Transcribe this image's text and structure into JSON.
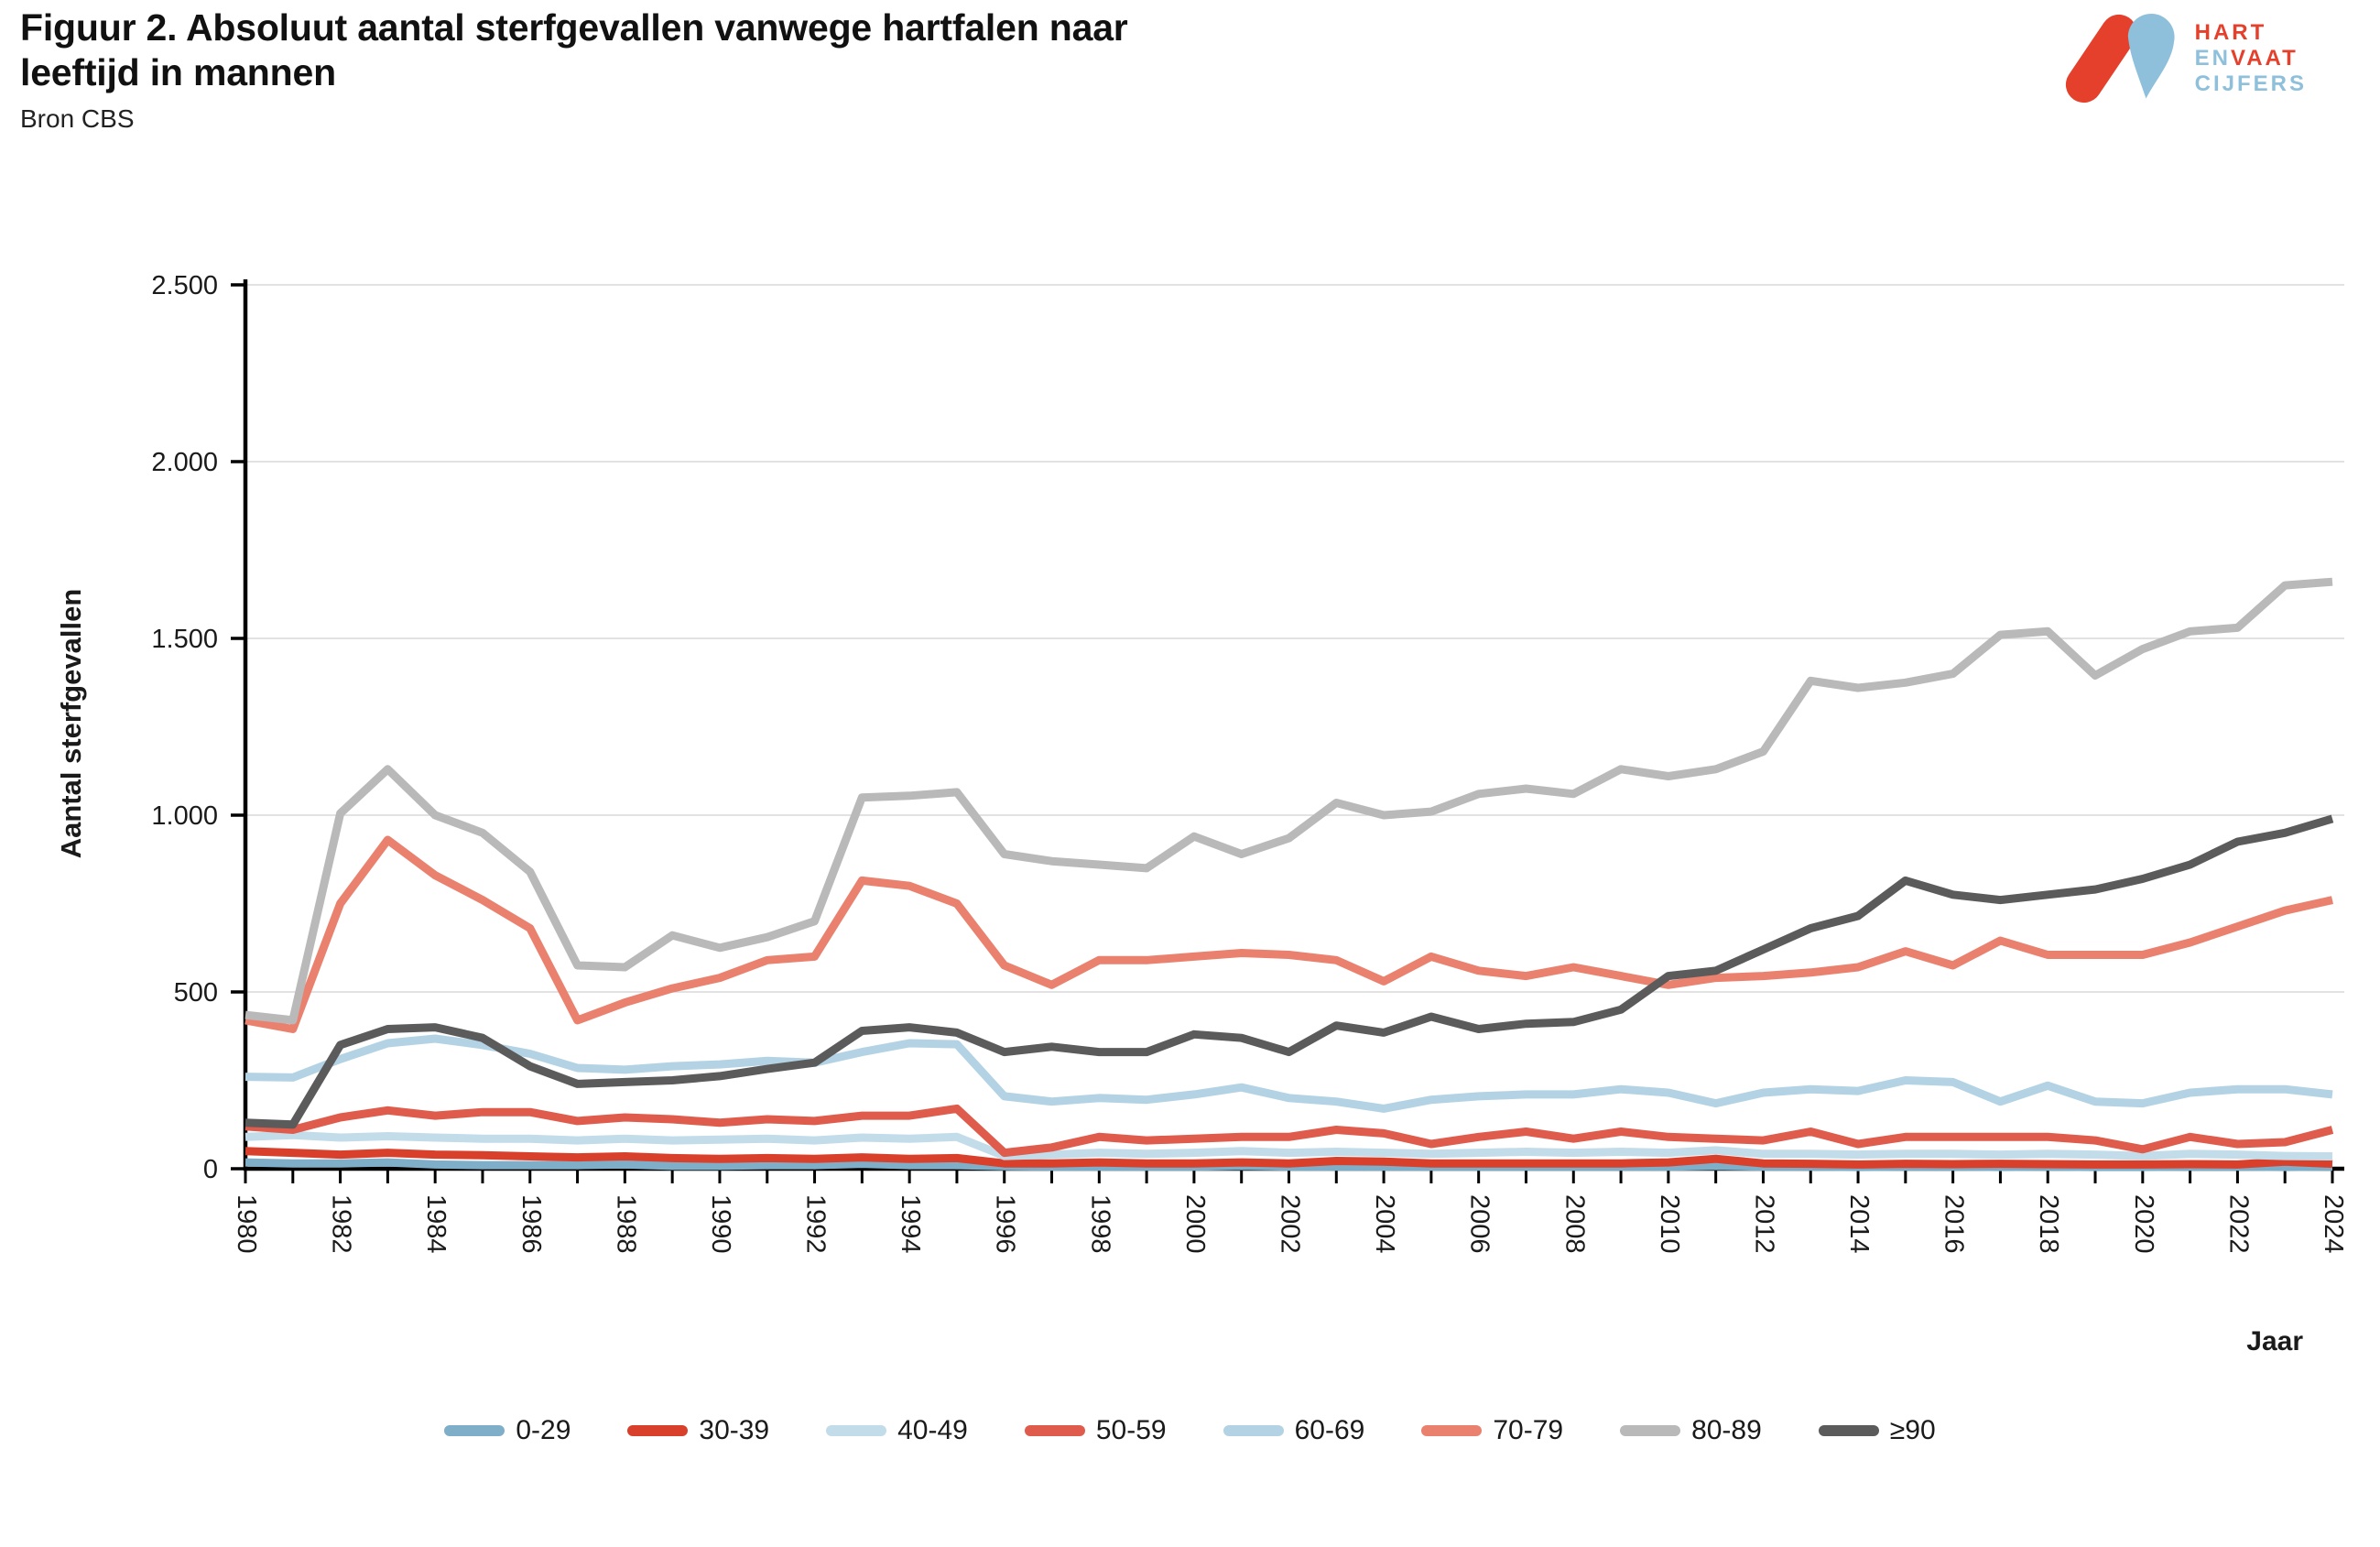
{
  "header": {
    "title": "Figuur 2. Absoluut aantal sterfgevallen vanwege hartfalen naar leeftijd in mannen",
    "subtitle": "Bron CBS"
  },
  "logo": {
    "line1": "HART",
    "line2a": "EN",
    "line2b": "VAAT",
    "line3": "CIJFERS",
    "red": "#E5402B",
    "blue": "#8EC0DB"
  },
  "chart_data": {
    "type": "line",
    "title": "Figuur 2. Absoluut aantal sterfgevallen vanwege hartfalen naar leeftijd in mannen",
    "xlabel": "Jaar",
    "ylabel": "Aantal sterfgevallen",
    "ylim": [
      0,
      2500
    ],
    "yticks": [
      0,
      500,
      1000,
      1500,
      2000,
      2500
    ],
    "ytick_labels": [
      "0",
      "500",
      "1.000",
      "1.500",
      "2.000",
      "2.500"
    ],
    "x_start": 1980,
    "x_end": 2024,
    "xtick_label_step": 2,
    "grid": true,
    "legend_position": "bottom",
    "grid_color": "#D9D9D9",
    "axis_color": "#000000",
    "x": [
      1980,
      1981,
      1982,
      1983,
      1984,
      1985,
      1986,
      1987,
      1988,
      1989,
      1990,
      1991,
      1992,
      1993,
      1994,
      1995,
      1996,
      1997,
      1998,
      1999,
      2000,
      2001,
      2002,
      2003,
      2004,
      2005,
      2006,
      2007,
      2008,
      2009,
      2010,
      2011,
      2012,
      2013,
      2014,
      2015,
      2016,
      2017,
      2018,
      2019,
      2020,
      2021,
      2022,
      2023,
      2024
    ],
    "series": [
      {
        "name": "0-29",
        "color": "#7FAEC9",
        "values": [
          18,
          15,
          15,
          18,
          12,
          10,
          10,
          10,
          12,
          8,
          8,
          10,
          10,
          14,
          10,
          10,
          7,
          6,
          6,
          6,
          6,
          8,
          6,
          6,
          6,
          6,
          6,
          6,
          6,
          6,
          6,
          8,
          6,
          6,
          5,
          6,
          6,
          5,
          6,
          5,
          5,
          6,
          6,
          5,
          6
        ]
      },
      {
        "name": "30-39",
        "color": "#D8402C",
        "values": [
          50,
          45,
          40,
          45,
          40,
          38,
          35,
          32,
          35,
          30,
          28,
          30,
          28,
          32,
          28,
          30,
          15,
          15,
          18,
          15,
          15,
          18,
          15,
          22,
          20,
          15,
          15,
          15,
          15,
          15,
          18,
          28,
          15,
          14,
          12,
          14,
          13,
          14,
          13,
          12,
          12,
          13,
          12,
          20,
          14
        ]
      },
      {
        "name": "40-49",
        "color": "#C3DCEA",
        "values": [
          90,
          95,
          88,
          92,
          88,
          85,
          85,
          80,
          85,
          80,
          82,
          85,
          80,
          88,
          85,
          90,
          36,
          40,
          45,
          42,
          45,
          50,
          45,
          48,
          45,
          42,
          45,
          48,
          45,
          48,
          45,
          52,
          42,
          42,
          40,
          42,
          42,
          40,
          42,
          40,
          36,
          42,
          40,
          36,
          35
        ]
      },
      {
        "name": "50-59",
        "color": "#DF5B4C",
        "values": [
          120,
          110,
          145,
          165,
          150,
          160,
          160,
          135,
          145,
          140,
          130,
          140,
          135,
          150,
          150,
          170,
          45,
          60,
          90,
          80,
          85,
          90,
          90,
          110,
          100,
          70,
          90,
          105,
          85,
          105,
          90,
          85,
          80,
          105,
          70,
          90,
          90,
          90,
          90,
          80,
          55,
          90,
          70,
          75,
          110
        ]
      },
      {
        "name": "60-69",
        "color": "#B3D3E4",
        "values": [
          260,
          258,
          310,
          355,
          368,
          350,
          325,
          285,
          280,
          290,
          295,
          305,
          300,
          330,
          355,
          352,
          205,
          190,
          200,
          195,
          210,
          230,
          200,
          190,
          170,
          195,
          205,
          210,
          210,
          225,
          215,
          185,
          215,
          225,
          220,
          250,
          245,
          190,
          235,
          190,
          185,
          215,
          225,
          225,
          210
        ]
      },
      {
        "name": "70-79",
        "color": "#E9816E",
        "values": [
          420,
          395,
          750,
          930,
          830,
          760,
          680,
          420,
          470,
          510,
          540,
          590,
          600,
          815,
          800,
          750,
          575,
          520,
          590,
          590,
          600,
          610,
          605,
          590,
          530,
          600,
          560,
          545,
          570,
          545,
          520,
          540,
          545,
          555,
          570,
          615,
          575,
          645,
          605,
          605,
          605,
          640,
          685,
          730,
          760
        ]
      },
      {
        "name": "80-89",
        "color": "#B9B9B9",
        "values": [
          435,
          420,
          1005,
          1130,
          1000,
          950,
          840,
          575,
          570,
          660,
          625,
          655,
          700,
          1050,
          1055,
          1065,
          890,
          870,
          860,
          850,
          940,
          890,
          935,
          1035,
          1000,
          1010,
          1060,
          1075,
          1060,
          1130,
          1110,
          1130,
          1180,
          1380,
          1360,
          1375,
          1400,
          1510,
          1520,
          1395,
          1470,
          1520,
          1530,
          1650,
          1660
        ]
      },
      {
        "name": "≥90",
        "color": "#5B5B5B",
        "values": [
          130,
          125,
          350,
          395,
          400,
          370,
          290,
          240,
          245,
          250,
          262,
          282,
          300,
          390,
          400,
          385,
          330,
          345,
          330,
          330,
          380,
          370,
          330,
          405,
          385,
          430,
          395,
          410,
          415,
          450,
          545,
          560,
          620,
          680,
          715,
          815,
          775,
          760,
          775,
          790,
          820,
          860,
          925,
          950,
          990
        ]
      }
    ]
  }
}
